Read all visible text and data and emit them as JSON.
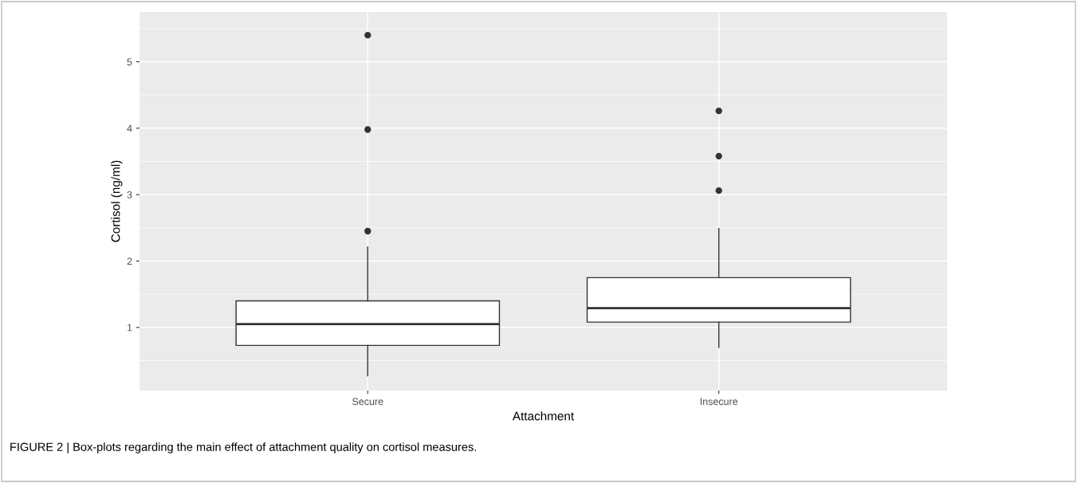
{
  "chart_data": {
    "type": "box",
    "xlabel": "Attachment",
    "ylabel": "Cortisol (ng/ml)",
    "categories": [
      "Secure",
      "Insecure"
    ],
    "boxes": [
      {
        "low": 0.27,
        "q1": 0.73,
        "median": 1.05,
        "q3": 1.4,
        "high": 2.21,
        "outliers": [
          2.45,
          3.98,
          5.4
        ]
      },
      {
        "low": 0.7,
        "q1": 1.08,
        "median": 1.29,
        "q3": 1.75,
        "high": 2.49,
        "outliers": [
          3.06,
          3.58,
          4.26
        ]
      }
    ],
    "ylim": [
      0.05,
      5.75
    ],
    "yticks": [
      1,
      2,
      3,
      4,
      5
    ],
    "grid": true,
    "annotations": [
      "FIGURE 2 | Box-plots regarding the main effect of attachment quality on cortisol measures."
    ]
  }
}
